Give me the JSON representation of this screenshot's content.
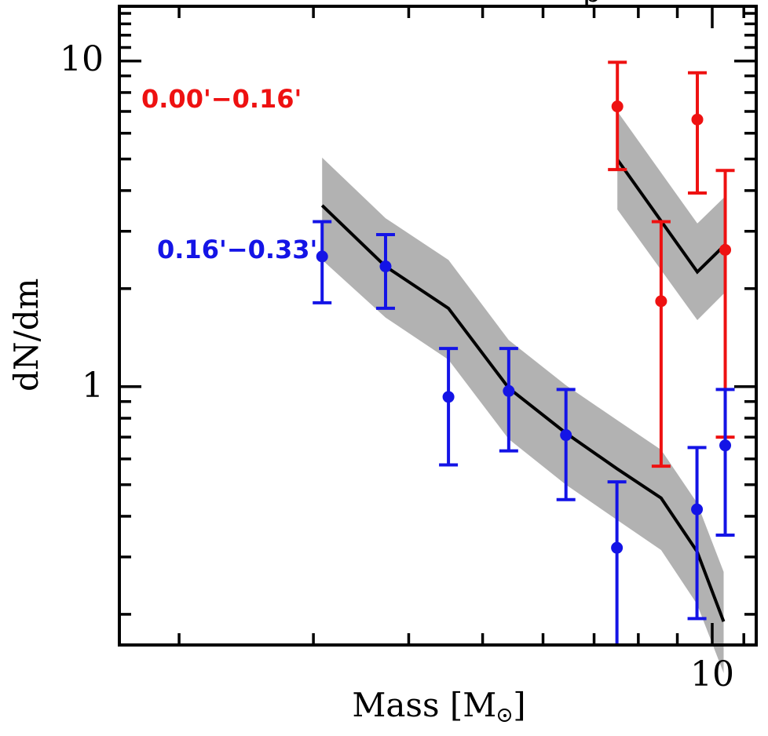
{
  "figure": {
    "title_fragment": "p",
    "background": "#ffffff"
  },
  "axes": {
    "x": {
      "label_prefix": "Mass [M",
      "label_suffix": "]",
      "sun_symbol": "circled-dot-icon",
      "scale": "log",
      "tick_label": "10"
    },
    "y": {
      "label": "dN/dm",
      "scale": "log",
      "tick_label_upper": "10",
      "tick_label_lower": "1"
    }
  },
  "chart_data": {
    "type": "scatter",
    "x_scale": "log",
    "y_scale": "log",
    "xlim": [
      1.67,
      11.42
    ],
    "ylim": [
      0.161,
      14.72
    ],
    "xlabel": "Mass [M_sun]",
    "ylabel": "dN/dm",
    "grid": false,
    "band_color": "#b2b2b2",
    "model_color": "#000000",
    "x_ticks": {
      "major": [
        10
      ],
      "minor": [
        2,
        3,
        4,
        5,
        6,
        7,
        8,
        9,
        11
      ]
    },
    "y_ticks": {
      "major": [
        1,
        10
      ],
      "minor": [
        0.2,
        0.3,
        0.4,
        0.5,
        0.6,
        0.7,
        0.8,
        0.9,
        2,
        3,
        4,
        5,
        6,
        7,
        8,
        9,
        11,
        12,
        13,
        14
      ]
    },
    "legend": [
      {
        "label": "0.00'−0.16'",
        "color": "#ee1111",
        "position": "upper-left"
      },
      {
        "label": "0.16'−0.33'",
        "color": "#1414e6",
        "position": "mid-left"
      }
    ],
    "series": [
      {
        "name": "0.00'−0.16'",
        "color": "#ee1111",
        "points": [
          {
            "x": 7.51,
            "y": 7.25,
            "lo": 4.64,
            "hi": 9.91
          },
          {
            "x": 8.57,
            "y": 1.83,
            "lo": 0.57,
            "hi": 3.21
          },
          {
            "x": 9.56,
            "y": 6.61,
            "lo": 3.93,
            "hi": 9.2
          },
          {
            "x": 10.4,
            "y": 2.63,
            "lo": 0.7,
            "hi": 4.61
          }
        ],
        "model_line": {
          "x": [
            7.51,
            9.56,
            10.4
          ],
          "y": [
            4.98,
            2.25,
            2.73
          ],
          "upper": [
            7.0,
            3.17,
            3.84
          ],
          "lower": [
            3.5,
            1.6,
            1.95
          ]
        }
      },
      {
        "name": "0.16'−0.33'",
        "color": "#1414e6",
        "points": [
          {
            "x": 3.08,
            "y": 2.51,
            "lo": 1.81,
            "hi": 3.21
          },
          {
            "x": 3.73,
            "y": 2.34,
            "lo": 1.74,
            "hi": 2.93
          },
          {
            "x": 4.51,
            "y": 0.93,
            "lo": 0.575,
            "hi": 1.31
          },
          {
            "x": 5.41,
            "y": 0.97,
            "lo": 0.635,
            "hi": 1.31
          },
          {
            "x": 6.43,
            "y": 0.71,
            "lo": 0.45,
            "hi": 0.98
          },
          {
            "x": 7.5,
            "y": 0.32,
            "lo": 0.161,
            "hi": 0.51
          },
          {
            "x": 9.55,
            "y": 0.42,
            "lo": 0.194,
            "hi": 0.65
          },
          {
            "x": 10.4,
            "y": 0.66,
            "lo": 0.35,
            "hi": 0.98
          }
        ],
        "model_line": {
          "x": [
            3.08,
            3.73,
            4.51,
            5.41,
            6.43,
            7.5,
            8.57,
            9.55,
            10.35
          ],
          "y": [
            3.6,
            2.34,
            1.74,
            0.99,
            0.72,
            0.56,
            0.455,
            0.312,
            0.19
          ],
          "upper": [
            5.05,
            3.29,
            2.45,
            1.39,
            1.01,
            0.79,
            0.64,
            0.44,
            0.27
          ],
          "lower": [
            2.45,
            1.63,
            1.21,
            0.69,
            0.5,
            0.39,
            0.315,
            0.215,
            0.132
          ]
        }
      }
    ]
  }
}
